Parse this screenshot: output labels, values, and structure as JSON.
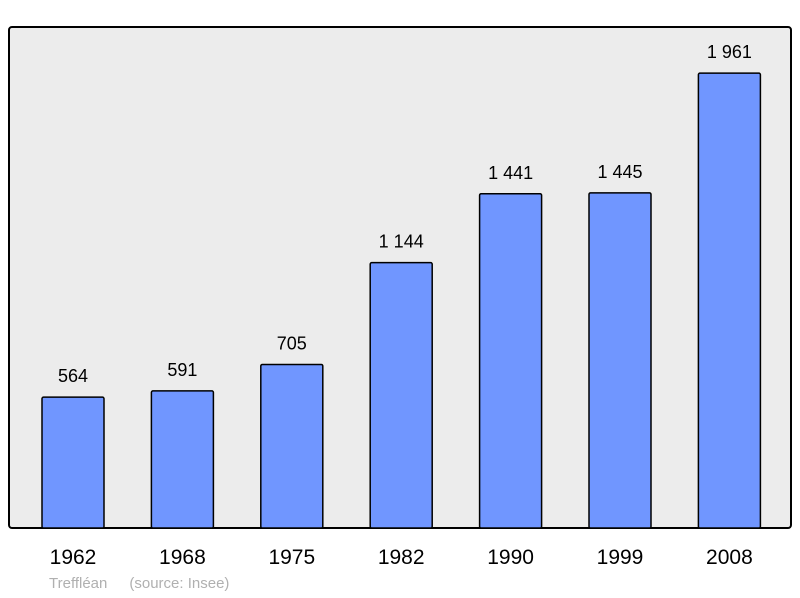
{
  "chart_data": {
    "type": "bar",
    "categories": [
      "1962",
      "1968",
      "1975",
      "1982",
      "1990",
      "1999",
      "2008"
    ],
    "values": [
      564,
      591,
      705,
      1144,
      1441,
      1445,
      1961
    ],
    "value_labels": [
      "564",
      "591",
      "705",
      "1 144",
      "1 441",
      "1 445",
      "1 961"
    ],
    "title": "",
    "xlabel": "",
    "ylabel": "",
    "ylim": [
      0,
      2160
    ],
    "grid": false,
    "legend": "none",
    "colors": {
      "bar": "#7096ff",
      "plot_bg": "#ececec",
      "frame": "#000000"
    }
  },
  "footer": {
    "commune": "Treffléan",
    "source": "(source: Insee)"
  }
}
